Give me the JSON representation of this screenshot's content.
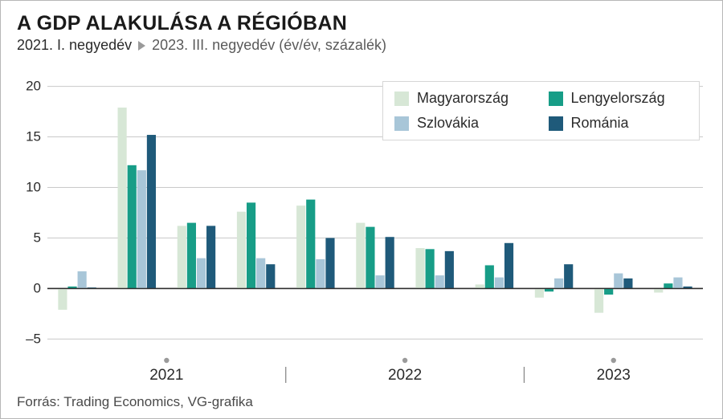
{
  "title": "A GDP ALAKULÁSA A RÉGIÓBAN",
  "subtitle_from": "2021. I. negyedév",
  "subtitle_to": "2023. III. negyedév (év/év, százalék)",
  "source_label": "Forrás: Trading Economics, VG-grafika",
  "chart": {
    "type": "bar",
    "background_color": "#ffffff",
    "grid_color": "#c9c9c9",
    "axis_color": "#8a8a8a",
    "baseline_color": "#2b2b2b",
    "ylim": [
      -6,
      21
    ],
    "yticks": [
      -5,
      0,
      5,
      10,
      15,
      20
    ],
    "groups": [
      "2021Q1",
      "2021Q2",
      "2021Q3",
      "2021Q4",
      "2022Q1",
      "2022Q2",
      "2022Q3",
      "2022Q4",
      "2023Q1",
      "2023Q2",
      "2023Q3"
    ],
    "nGroups": 11,
    "year_dividers_after_group_index": [
      3,
      7
    ],
    "years": [
      "2021",
      "2022",
      "2023"
    ],
    "year_centers_group_index": [
      1.5,
      5.5,
      9
    ],
    "series": [
      {
        "name": "Magyarország",
        "color": "#d7e7d6",
        "values": [
          -2.1,
          17.9,
          6.2,
          7.6,
          8.2,
          6.5,
          4.0,
          0.4,
          -0.9,
          -2.4,
          -0.4
        ]
      },
      {
        "name": "Lengyelország",
        "color": "#179d87",
        "values": [
          0.2,
          12.2,
          6.5,
          8.5,
          8.8,
          6.1,
          3.9,
          2.3,
          -0.3,
          -0.6,
          0.5
        ]
      },
      {
        "name": "Szlovákia",
        "color": "#a8c6d8",
        "values": [
          1.7,
          11.7,
          3.0,
          3.0,
          2.9,
          1.3,
          1.3,
          1.1,
          1.0,
          1.5,
          1.1
        ]
      },
      {
        "name": "Románia",
        "color": "#1f5a7a",
        "values": [
          0.1,
          15.2,
          6.2,
          2.4,
          5.0,
          5.1,
          3.7,
          4.5,
          2.4,
          1.0,
          0.2
        ]
      }
    ],
    "bar_gap_outer": 0.18,
    "bar_gap_inner": 0.02,
    "label_fontsize": 17,
    "year_fontsize": 19,
    "legend_fontsize": 18
  }
}
